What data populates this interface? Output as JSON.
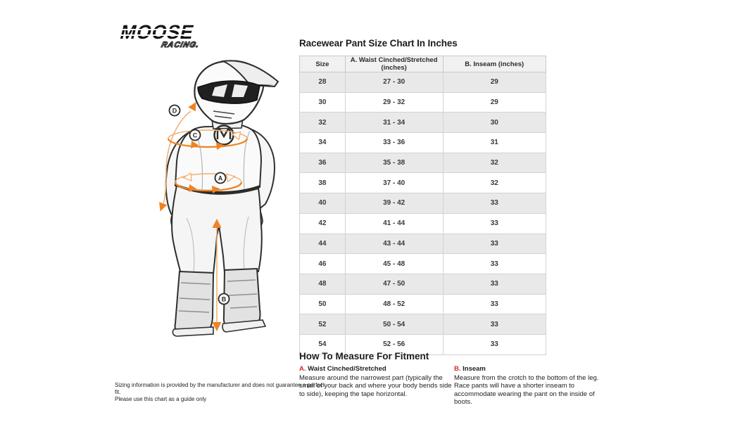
{
  "brand": {
    "name": "MOOSE",
    "sub": "RACING."
  },
  "table": {
    "title": "Racewear Pant Size Chart In Inches",
    "columns": [
      "Size",
      "A. Waist Cinched/Stretched (inches)",
      "B. Inseam (inches)"
    ],
    "rows": [
      [
        "28",
        "27 - 30",
        "29"
      ],
      [
        "30",
        "29 - 32",
        "29"
      ],
      [
        "32",
        "31 - 34",
        "30"
      ],
      [
        "34",
        "33 - 36",
        "31"
      ],
      [
        "36",
        "35 - 38",
        "32"
      ],
      [
        "38",
        "37 - 40",
        "32"
      ],
      [
        "40",
        "39 - 42",
        "33"
      ],
      [
        "42",
        "41 - 44",
        "33"
      ],
      [
        "44",
        "43 - 44",
        "33"
      ],
      [
        "46",
        "45 - 48",
        "33"
      ],
      [
        "48",
        "47 - 50",
        "33"
      ],
      [
        "50",
        "48 - 52",
        "33"
      ],
      [
        "52",
        "50 - 54",
        "33"
      ],
      [
        "54",
        "52 - 56",
        "33"
      ]
    ]
  },
  "chart_data": {
    "type": "table",
    "title": "Racewear Pant Size Chart In Inches",
    "columns": [
      "Size",
      "A. Waist Cinched/Stretched (inches)",
      "B. Inseam (inches)"
    ],
    "rows": [
      [
        "28",
        "27 - 30",
        "29"
      ],
      [
        "30",
        "29 - 32",
        "29"
      ],
      [
        "32",
        "31 - 34",
        "30"
      ],
      [
        "34",
        "33 - 36",
        "31"
      ],
      [
        "36",
        "35 - 38",
        "32"
      ],
      [
        "38",
        "37 - 40",
        "32"
      ],
      [
        "40",
        "39 - 42",
        "33"
      ],
      [
        "42",
        "41 - 44",
        "33"
      ],
      [
        "44",
        "43 - 44",
        "33"
      ],
      [
        "46",
        "45 - 48",
        "33"
      ],
      [
        "48",
        "47 - 50",
        "33"
      ],
      [
        "50",
        "48 - 52",
        "33"
      ],
      [
        "52",
        "50 - 54",
        "33"
      ],
      [
        "54",
        "52 - 56",
        "33"
      ]
    ]
  },
  "how_to_measure": {
    "title": "How To Measure For Fitment",
    "sections": [
      {
        "key": "A.",
        "heading": "Waist Cinched/Stretched",
        "body": "Measure around the narrowest part (typically the small of your back and where your body bends side to side), keeping the tape horizontal."
      },
      {
        "key": "B.",
        "heading": "Inseam",
        "body": "Measure from the crotch to the bottom of the leg. Race pants will have a shorter inseam to accommodate wearing the pant on the inside of boots."
      }
    ]
  },
  "disclaimer": {
    "line1": "Sizing information is provided by the manufacturer and does not guarantee a perfect fit.",
    "line2": "Please use this chart as a guide only"
  },
  "figure": {
    "labels": [
      "A",
      "B",
      "C",
      "D"
    ]
  },
  "colors": {
    "accent_orange": "#EF8322",
    "accent_orange_light": "#F3AD6F",
    "accent_red": "#D9292B",
    "row_stripe": "#E9E9E9",
    "header_bg": "#F1F1F1",
    "border": "#C9C9C9"
  }
}
